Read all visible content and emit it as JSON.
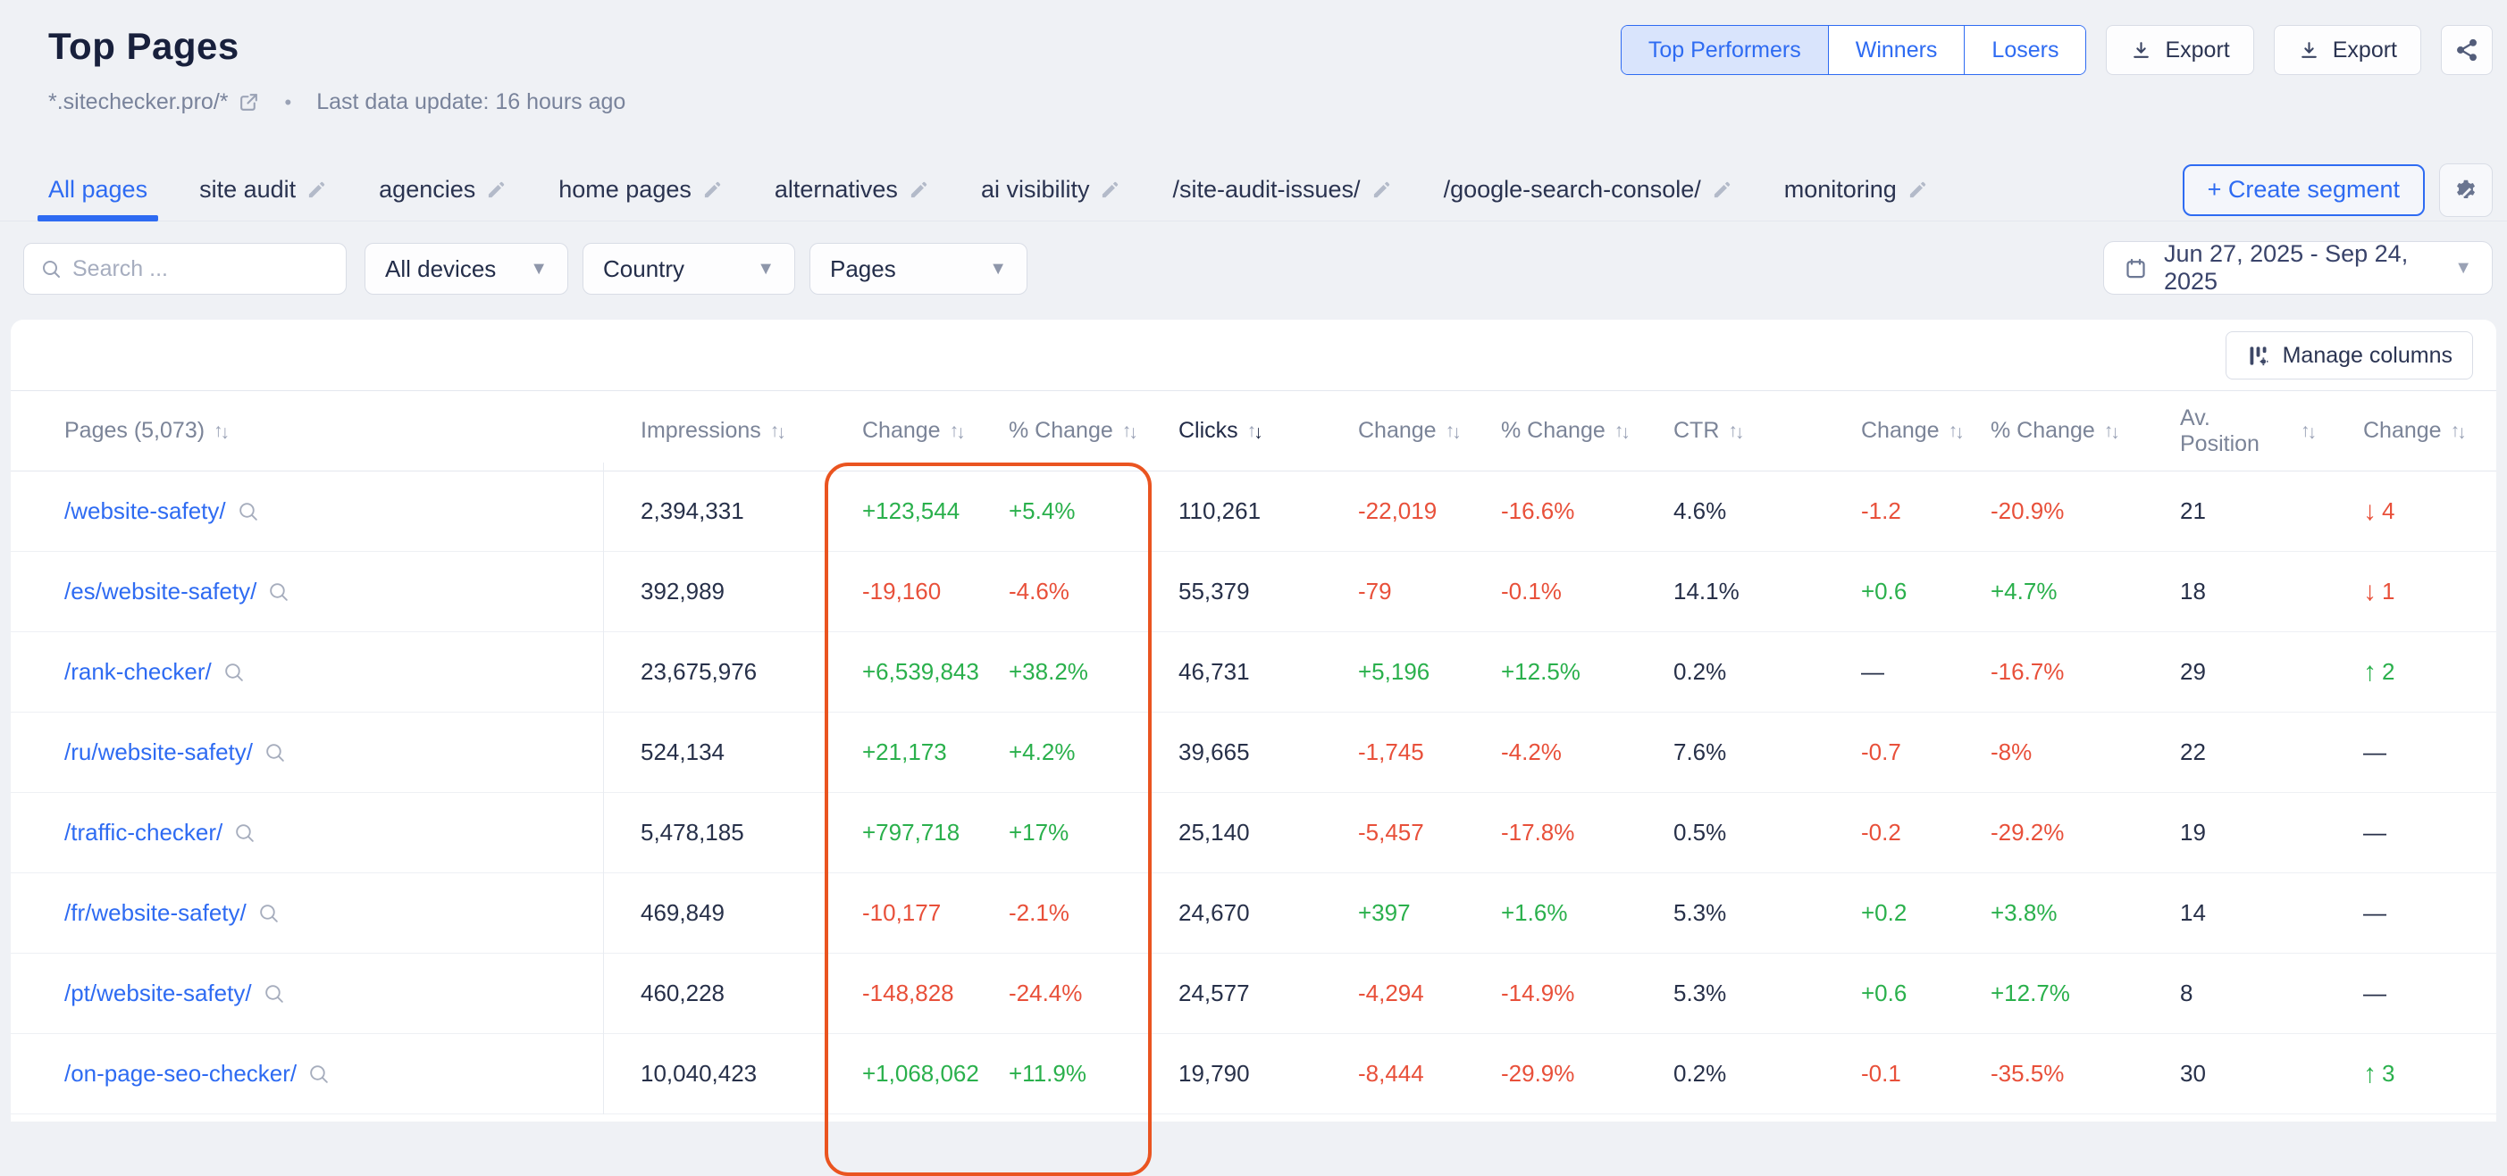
{
  "theme": {
    "accent": "#2e6bf2",
    "green": "#2ab04c",
    "red": "#e8503a",
    "highlight": "#ea5420"
  },
  "header": {
    "title": "Top Pages",
    "domain": "*.sitechecker.pro/*",
    "separator": "•",
    "last_update": "Last data update: 16 hours ago",
    "view_toggle": [
      {
        "label": "Top Performers",
        "active": true
      },
      {
        "label": "Winners",
        "active": false
      },
      {
        "label": "Losers",
        "active": false
      }
    ],
    "export_label": "Export",
    "export2_label": "Export"
  },
  "tabs": {
    "items": [
      {
        "label": "All pages",
        "active": true,
        "editable": false
      },
      {
        "label": "site audit",
        "active": false,
        "editable": true
      },
      {
        "label": "agencies",
        "active": false,
        "editable": true
      },
      {
        "label": "home pages",
        "active": false,
        "editable": true
      },
      {
        "label": "alternatives",
        "active": false,
        "editable": true
      },
      {
        "label": "ai visibility",
        "active": false,
        "editable": true
      },
      {
        "label": "/site-audit-issues/",
        "active": false,
        "editable": true
      },
      {
        "label": "/google-search-console/",
        "active": false,
        "editable": true
      },
      {
        "label": "monitoring",
        "active": false,
        "editable": true
      }
    ],
    "create_segment_label": "+ Create segment"
  },
  "filters": {
    "search_placeholder": "Search ...",
    "device_select": "All devices",
    "country_select": "Country",
    "pages_select": "Pages",
    "date_range": "Jun 27, 2025 - Sep 24, 2025"
  },
  "toolbar": {
    "manage_columns_label": "Manage columns"
  },
  "table": {
    "columns": [
      {
        "label": "Pages (5,073)",
        "sorted": false
      },
      {
        "label": "Impressions",
        "sorted": false
      },
      {
        "label": "Change",
        "sorted": false
      },
      {
        "label": "% Change",
        "sorted": false
      },
      {
        "label": "Clicks",
        "sorted": true
      },
      {
        "label": "Change",
        "sorted": false
      },
      {
        "label": "% Change",
        "sorted": false
      },
      {
        "label": "CTR",
        "sorted": false
      },
      {
        "label": "Change",
        "sorted": false
      },
      {
        "label": "% Change",
        "sorted": false
      },
      {
        "label": "Av. Position",
        "sorted": false
      },
      {
        "label": "Change",
        "sorted": false
      }
    ],
    "rows": [
      {
        "page": "/website-safety/",
        "cells": [
          "2,394,331",
          "+123,544",
          "+5.4%",
          "110,261",
          "-22,019",
          "-16.6%",
          "4.6%",
          "-1.2",
          "-20.9%",
          "21",
          "↓4"
        ]
      },
      {
        "page": "/es/website-safety/",
        "cells": [
          "392,989",
          "-19,160",
          "-4.6%",
          "55,379",
          "-79",
          "-0.1%",
          "14.1%",
          "+0.6",
          "+4.7%",
          "18",
          "↓1"
        ]
      },
      {
        "page": "/rank-checker/",
        "cells": [
          "23,675,976",
          "+6,539,843",
          "+38.2%",
          "46,731",
          "+5,196",
          "+12.5%",
          "0.2%",
          "—",
          "-16.7%",
          "29",
          "↑2"
        ]
      },
      {
        "page": "/ru/website-safety/",
        "cells": [
          "524,134",
          "+21,173",
          "+4.2%",
          "39,665",
          "-1,745",
          "-4.2%",
          "7.6%",
          "-0.7",
          "-8%",
          "22",
          "—"
        ]
      },
      {
        "page": "/traffic-checker/",
        "cells": [
          "5,478,185",
          "+797,718",
          "+17%",
          "25,140",
          "-5,457",
          "-17.8%",
          "0.5%",
          "-0.2",
          "-29.2%",
          "19",
          "—"
        ]
      },
      {
        "page": "/fr/website-safety/",
        "cells": [
          "469,849",
          "-10,177",
          "-2.1%",
          "24,670",
          "+397",
          "+1.6%",
          "5.3%",
          "+0.2",
          "+3.8%",
          "14",
          "—"
        ]
      },
      {
        "page": "/pt/website-safety/",
        "cells": [
          "460,228",
          "-148,828",
          "-24.4%",
          "24,577",
          "-4,294",
          "-14.9%",
          "5.3%",
          "+0.6",
          "+12.7%",
          "8",
          "—"
        ]
      },
      {
        "page": "/on-page-seo-checker/",
        "cells": [
          "10,040,423",
          "+1,068,062",
          "+11.9%",
          "19,790",
          "-8,444",
          "-29.9%",
          "0.2%",
          "-0.1",
          "-35.5%",
          "30",
          "↑3"
        ]
      }
    ]
  }
}
